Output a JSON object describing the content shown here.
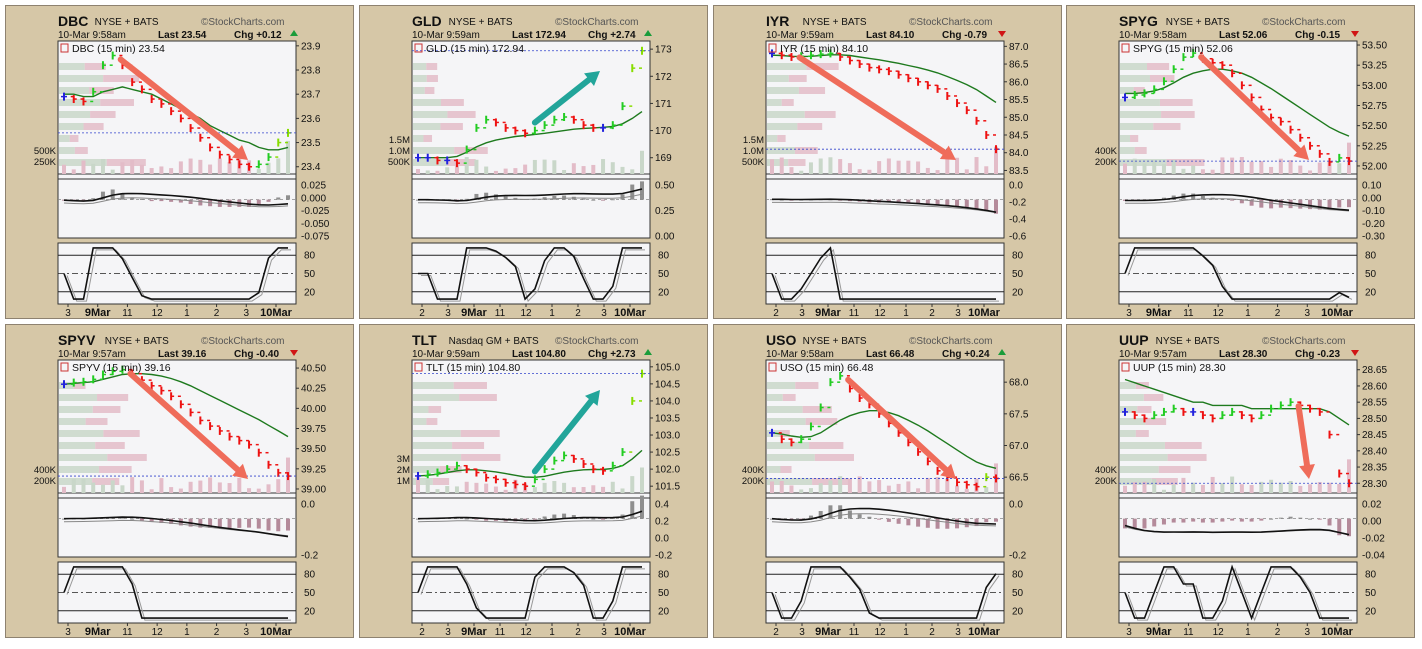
{
  "watermark": "StockCharts.com",
  "colors": {
    "panel_bg": "#d6c7a7",
    "plot_bg": "#f5f5f7",
    "bar_up": "#22cc22",
    "bar_down": "#ee1111",
    "bar_neutral": "#2222dd",
    "ma_line": "#1e7a1e",
    "volume_up": "#c9d7c9",
    "volume_down": "#e3bcc8",
    "arrow_down": "#ef6c5a",
    "arrow_up": "#22a59a",
    "macd_hist_up": "#8f8f8f",
    "macd_hist_down": "#b48a9a"
  },
  "chart_data": [
    {
      "type": "line",
      "symbol": "DBC",
      "exchange": "NYSE + BATS",
      "date_label": "10-Mar 9:58am",
      "last_label": "Last 23.54",
      "chg_label": "Chg +0.12",
      "chg_dir": "up",
      "legend": "DBC (15 min) 23.54",
      "price_ticks": [
        "23.9",
        "23.8",
        "23.7",
        "23.6",
        "23.5",
        "23.4"
      ],
      "price_range": [
        23.37,
        23.92
      ],
      "price_values": [
        23.69,
        23.68,
        23.67,
        23.71,
        23.82,
        23.86,
        23.82,
        23.75,
        23.72,
        23.68,
        23.66,
        23.63,
        23.6,
        23.56,
        23.52,
        23.48,
        23.45,
        23.43,
        23.41,
        23.4,
        23.41,
        23.44,
        23.5,
        23.54
      ],
      "ma_values": [
        23.7,
        23.7,
        23.69,
        23.69,
        23.71,
        23.72,
        23.73,
        23.72,
        23.71,
        23.7,
        23.68,
        23.66,
        23.64,
        23.62,
        23.6,
        23.57,
        23.55,
        23.53,
        23.51,
        23.5,
        23.48,
        23.47,
        23.47,
        23.48
      ],
      "volume_ticks": [
        "500K",
        "250K"
      ],
      "macd_ticks": [
        "0.025",
        "0.000",
        "-0.025",
        "-0.050",
        "-0.075"
      ],
      "stoch_ticks": [
        "80",
        "50",
        "20"
      ],
      "x_ticks": [
        "3",
        "9Mar",
        "11",
        "12",
        "1",
        "2",
        "3",
        "10Mar"
      ],
      "trend_arrow": "down"
    },
    {
      "type": "line",
      "symbol": "GLD",
      "exchange": "NYSE + BATS",
      "date_label": "10-Mar 9:59am",
      "last_label": "Last 172.94",
      "chg_label": "Chg +2.74",
      "chg_dir": "up",
      "legend": "GLD (15 min) 172.94",
      "price_ticks": [
        "173",
        "172",
        "171",
        "170",
        "169"
      ],
      "price_range": [
        168.4,
        173.3
      ],
      "price_values": [
        169.0,
        169.0,
        168.9,
        168.9,
        168.8,
        169.3,
        170.1,
        170.4,
        170.3,
        170.1,
        170.0,
        169.9,
        170.0,
        170.2,
        170.4,
        170.5,
        170.4,
        170.2,
        170.1,
        170.1,
        170.2,
        170.9,
        172.3,
        172.94
      ],
      "ma_values": [
        169.0,
        169.0,
        169.0,
        169.0,
        169.05,
        169.2,
        169.4,
        169.55,
        169.65,
        169.72,
        169.78,
        169.82,
        169.86,
        169.9,
        169.95,
        170.0,
        170.05,
        170.08,
        170.1,
        170.12,
        170.15,
        170.25,
        170.45,
        170.7
      ],
      "volume_ticks": [
        "1.5M",
        "1.0M",
        "500K"
      ],
      "macd_ticks": [
        "0.50",
        "0.25",
        "0.00"
      ],
      "stoch_ticks": [
        "80",
        "50",
        "20"
      ],
      "x_ticks": [
        "2",
        "3",
        "9Mar",
        "11",
        "12",
        "1",
        "2",
        "3",
        "10Mar"
      ],
      "trend_arrow": "up"
    },
    {
      "type": "line",
      "symbol": "IYR",
      "exchange": "NYSE + BATS",
      "date_label": "10-Mar 9:59am",
      "last_label": "Last 84.10",
      "chg_label": "Chg -0.79",
      "chg_dir": "down",
      "legend": "IYR (15 min) 84.10",
      "price_ticks": [
        "87.0",
        "86.5",
        "86.0",
        "85.5",
        "85.0",
        "84.5",
        "84.0",
        "83.5"
      ],
      "price_range": [
        83.4,
        87.15
      ],
      "price_values": [
        86.8,
        86.75,
        86.7,
        86.72,
        86.75,
        86.78,
        86.8,
        86.7,
        86.6,
        86.5,
        86.4,
        86.35,
        86.3,
        86.2,
        86.1,
        86.0,
        85.9,
        85.8,
        85.6,
        85.4,
        85.2,
        84.9,
        84.5,
        84.1
      ],
      "ma_values": [
        86.75,
        86.74,
        86.72,
        86.71,
        86.72,
        86.74,
        86.76,
        86.76,
        86.74,
        86.7,
        86.66,
        86.62,
        86.57,
        86.52,
        86.46,
        86.4,
        86.33,
        86.25,
        86.15,
        86.04,
        85.92,
        85.78,
        85.6,
        85.42
      ],
      "volume_ticks": [
        "1.5M",
        "1.0M",
        "500K"
      ],
      "macd_ticks": [
        "0.0",
        "-0.2",
        "-0.4",
        "-0.6"
      ],
      "stoch_ticks": [
        "80",
        "50",
        "20"
      ],
      "x_ticks": [
        "2",
        "3",
        "9Mar",
        "11",
        "12",
        "1",
        "2",
        "3",
        "10Mar"
      ],
      "trend_arrow": "down"
    },
    {
      "type": "line",
      "symbol": "SPYG",
      "exchange": "NYSE + BATS",
      "date_label": "10-Mar 9:58am",
      "last_label": "Last 52.06",
      "chg_label": "Chg -0.15",
      "chg_dir": "down",
      "legend": "SPYG (15 min) 52.06",
      "price_ticks": [
        "53.50",
        "53.25",
        "53.00",
        "52.75",
        "52.50",
        "52.25",
        "52.00"
      ],
      "price_range": [
        51.9,
        53.55
      ],
      "price_values": [
        52.85,
        52.88,
        52.9,
        52.95,
        53.05,
        53.2,
        53.35,
        53.4,
        53.33,
        53.28,
        53.25,
        53.15,
        53.0,
        52.85,
        52.7,
        52.6,
        52.55,
        52.45,
        52.35,
        52.25,
        52.15,
        52.05,
        52.1,
        52.06
      ],
      "ma_values": [
        52.9,
        52.9,
        52.91,
        52.93,
        52.97,
        53.03,
        53.1,
        53.15,
        53.18,
        53.2,
        53.2,
        53.18,
        53.15,
        53.1,
        53.03,
        52.96,
        52.88,
        52.8,
        52.72,
        52.64,
        52.56,
        52.48,
        52.42,
        52.37
      ],
      "volume_ticks": [
        "400K",
        "200K"
      ],
      "macd_ticks": [
        "0.10",
        "0.00",
        "-0.10",
        "-0.20",
        "-0.30"
      ],
      "stoch_ticks": [
        "80",
        "50",
        "20"
      ],
      "x_ticks": [
        "3",
        "9Mar",
        "11",
        "12",
        "1",
        "2",
        "3",
        "10Mar"
      ],
      "trend_arrow": "down"
    },
    {
      "type": "line",
      "symbol": "SPYV",
      "exchange": "NYSE + BATS",
      "date_label": "10-Mar 9:57am",
      "last_label": "Last 39.16",
      "chg_label": "Chg -0.40",
      "chg_dir": "down",
      "legend": "SPYV (15 min) 39.16",
      "price_ticks": [
        "40.50",
        "40.25",
        "40.00",
        "39.75",
        "39.50",
        "39.25",
        "39.00"
      ],
      "price_range": [
        38.95,
        40.6
      ],
      "price_values": [
        40.3,
        40.32,
        40.33,
        40.36,
        40.42,
        40.46,
        40.48,
        40.43,
        40.35,
        40.28,
        40.22,
        40.15,
        40.05,
        39.95,
        39.85,
        39.78,
        39.72,
        39.65,
        39.6,
        39.55,
        39.45,
        39.3,
        39.2,
        39.16
      ],
      "ma_values": [
        40.3,
        40.31,
        40.32,
        40.33,
        40.36,
        40.39,
        40.42,
        40.43,
        40.43,
        40.42,
        40.4,
        40.37,
        40.33,
        40.28,
        40.22,
        40.16,
        40.1,
        40.04,
        39.98,
        39.92,
        39.86,
        39.79,
        39.72,
        39.65
      ],
      "volume_ticks": [
        "400K",
        "200K"
      ],
      "macd_ticks": [
        "0.0",
        "-0.2"
      ],
      "stoch_ticks": [
        "80",
        "50",
        "20"
      ],
      "x_ticks": [
        "3",
        "9Mar",
        "11",
        "12",
        "1",
        "2",
        "3",
        "10Mar"
      ],
      "trend_arrow": "down"
    },
    {
      "type": "line",
      "symbol": "TLT",
      "exchange": "Nasdaq GM + BATS",
      "date_label": "10-Mar 9:59am",
      "last_label": "Last 104.80",
      "chg_label": "Chg +2.73",
      "chg_dir": "up",
      "legend": "TLT (15 min) 104.80",
      "price_ticks": [
        "105.0",
        "104.5",
        "104.0",
        "103.5",
        "103.0",
        "102.5",
        "102.0",
        "101.5"
      ],
      "price_range": [
        101.3,
        105.2
      ],
      "price_values": [
        101.8,
        101.85,
        101.9,
        102.0,
        102.1,
        102.0,
        101.9,
        101.75,
        101.7,
        101.6,
        101.55,
        101.5,
        101.7,
        102.0,
        102.25,
        102.4,
        102.3,
        102.15,
        102.0,
        101.95,
        102.1,
        102.5,
        104.0,
        104.8
      ],
      "ma_values": [
        101.8,
        101.82,
        101.85,
        101.9,
        101.95,
        101.98,
        101.98,
        101.95,
        101.92,
        101.87,
        101.82,
        101.77,
        101.76,
        101.79,
        101.85,
        101.91,
        101.95,
        101.98,
        101.99,
        101.99,
        102.02,
        102.1,
        102.3,
        102.55
      ],
      "volume_ticks": [
        "3M",
        "2M",
        "1M"
      ],
      "macd_ticks": [
        "0.4",
        "0.2",
        "0.0",
        "-0.2"
      ],
      "stoch_ticks": [
        "80",
        "50",
        "20"
      ],
      "x_ticks": [
        "2",
        "3",
        "9Mar",
        "11",
        "12",
        "1",
        "2",
        "3",
        "10Mar"
      ],
      "trend_arrow": "up"
    },
    {
      "type": "line",
      "symbol": "USO",
      "exchange": "NYSE + BATS",
      "date_label": "10-Mar 9:58am",
      "last_label": "Last 66.48",
      "chg_label": "Chg +0.24",
      "chg_dir": "up",
      "legend": "USO (15 min) 66.48",
      "price_ticks": [
        "68.0",
        "67.5",
        "67.0",
        "66.5"
      ],
      "price_range": [
        66.25,
        68.35
      ],
      "price_values": [
        67.2,
        67.1,
        67.05,
        67.1,
        67.3,
        67.6,
        68.0,
        68.1,
        67.9,
        67.75,
        67.65,
        67.5,
        67.35,
        67.2,
        67.05,
        66.9,
        66.75,
        66.6,
        66.5,
        66.42,
        66.38,
        66.35,
        66.5,
        66.48
      ],
      "ma_values": [
        67.2,
        67.18,
        67.15,
        67.13,
        67.14,
        67.2,
        67.3,
        67.4,
        67.47,
        67.52,
        67.55,
        67.55,
        67.52,
        67.47,
        67.4,
        67.32,
        67.23,
        67.13,
        67.03,
        66.93,
        66.83,
        66.74,
        66.68,
        66.64
      ],
      "volume_ticks": [
        "400K",
        "200K"
      ],
      "macd_ticks": [
        "0.0",
        "-0.2"
      ],
      "stoch_ticks": [
        "80",
        "50",
        "20"
      ],
      "x_ticks": [
        "2",
        "3",
        "9Mar",
        "11",
        "12",
        "1",
        "2",
        "3",
        "10Mar"
      ],
      "trend_arrow": "down"
    },
    {
      "type": "line",
      "symbol": "UUP",
      "exchange": "NYSE + BATS",
      "date_label": "10-Mar 9:57am",
      "last_label": "Last 28.30",
      "chg_label": "Chg -0.23",
      "chg_dir": "down",
      "legend": "UUP (15 min) 28.30",
      "price_ticks": [
        "28.65",
        "28.60",
        "28.55",
        "28.50",
        "28.45",
        "28.40",
        "28.35",
        "28.30"
      ],
      "price_range": [
        28.27,
        28.68
      ],
      "price_values": [
        28.52,
        28.51,
        28.5,
        28.51,
        28.52,
        28.53,
        28.52,
        28.52,
        28.51,
        28.5,
        28.51,
        28.52,
        28.51,
        28.5,
        28.51,
        28.53,
        28.54,
        28.55,
        28.54,
        28.53,
        28.52,
        28.45,
        28.33,
        28.3
      ],
      "ma_values": [
        28.62,
        28.61,
        28.6,
        28.59,
        28.58,
        28.57,
        28.56,
        28.55,
        28.55,
        28.54,
        28.54,
        28.54,
        28.54,
        28.53,
        28.53,
        28.53,
        28.53,
        28.53,
        28.53,
        28.53,
        28.53,
        28.52,
        28.5,
        28.48
      ],
      "volume_ticks": [
        "400K",
        "200K"
      ],
      "macd_ticks": [
        "0.02",
        "0.00",
        "-0.02",
        "-0.04"
      ],
      "stoch_ticks": [
        "80",
        "50",
        "20"
      ],
      "x_ticks": [
        "3",
        "9Mar",
        "11",
        "12",
        "1",
        "2",
        "3",
        "10Mar"
      ],
      "trend_arrow": "down"
    }
  ]
}
